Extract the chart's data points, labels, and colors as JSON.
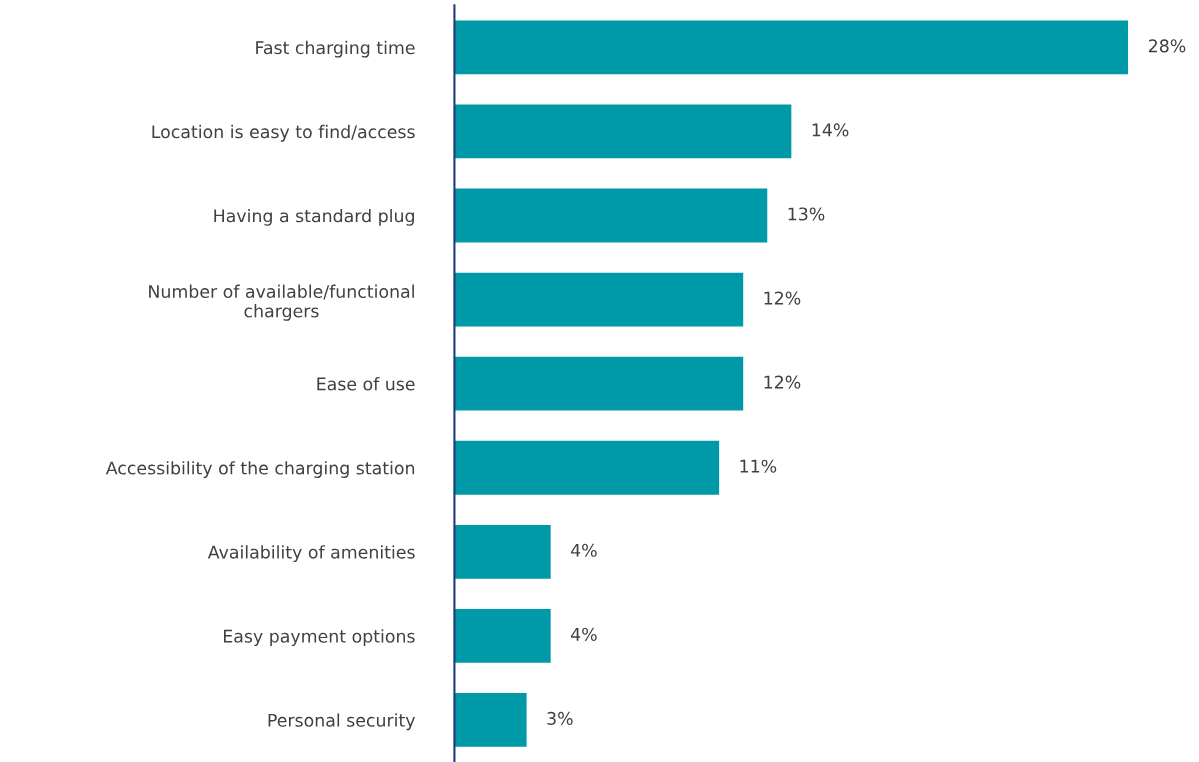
{
  "chart_data": {
    "type": "bar",
    "orientation": "horizontal",
    "categories": [
      "Fast charging time",
      "Location is easy to find/access",
      "Having a standard plug",
      "Number of available/functional\nchargers",
      "Ease of use",
      "Accessibility of the charging station",
      "Availability of amenities",
      "Easy payment options",
      "Personal security"
    ],
    "values": [
      28,
      14,
      13,
      12,
      12,
      11,
      4,
      4,
      3
    ],
    "value_labels": [
      "28%",
      "14%",
      "13%",
      "12%",
      "12%",
      "11%",
      "4%",
      "4%",
      "3%"
    ],
    "color": "#0099a8",
    "grid": false,
    "legend": false
  }
}
